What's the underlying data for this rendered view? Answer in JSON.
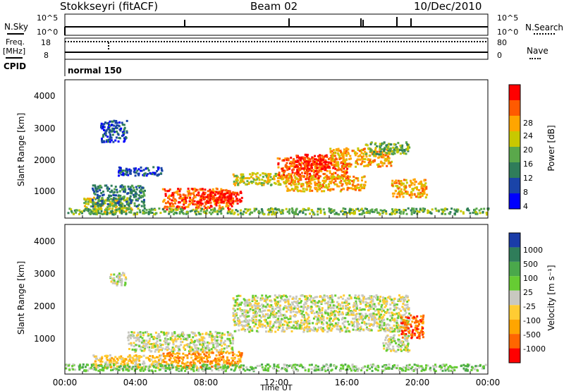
{
  "header": {
    "station": "Stokkseyri (fitACF)",
    "beam": "Beam 02",
    "date": "10/Dec/2010"
  },
  "top_panels": {
    "nsky_label": "N.Sky",
    "nsky_ticks": [
      "10^5",
      "10^0"
    ],
    "nsearch_label": "N.Search",
    "nsearch_ticks": [
      "10^5",
      "10^0"
    ],
    "freq_label_1": "Freq.",
    "freq_label_2": "[MHz]",
    "freq_ticks": [
      "18",
      "8"
    ],
    "nave_label": "Nave",
    "nave_ticks": [
      "80",
      "0"
    ],
    "cpid_label": "CPID",
    "cpid_value": "normal 150"
  },
  "chart_data": [
    {
      "type": "heatmap",
      "panel": "power",
      "ylabel": "Slant Range [km]",
      "xlabel": "",
      "y_ticks": [
        "4000",
        "3000",
        "2000",
        "1000"
      ],
      "colorbar_label": "Power [dB]",
      "colorbar_ticks": [
        "28",
        "24",
        "20",
        "16",
        "12",
        "8",
        "4"
      ],
      "colors": [
        "#0000ff",
        "#1a44a8",
        "#2f7d5a",
        "#5aa84b",
        "#c8c800",
        "#ffa500",
        "#ff5a00",
        "#ff0000"
      ],
      "blobs": [
        {
          "t0": 2.0,
          "t1": 3.5,
          "r0": 2500,
          "r1": 3200,
          "level": 1
        },
        {
          "t0": 1.0,
          "t1": 3.8,
          "r0": 200,
          "r1": 700,
          "level": 4
        },
        {
          "t0": 1.5,
          "t1": 4.5,
          "r0": 400,
          "r1": 1100,
          "level": 2
        },
        {
          "t0": 3.0,
          "t1": 5.5,
          "r0": 1400,
          "r1": 1700,
          "level": 1
        },
        {
          "t0": 5.5,
          "t1": 9.5,
          "r0": 300,
          "r1": 1000,
          "level": 6
        },
        {
          "t0": 7.5,
          "t1": 10.0,
          "r0": 500,
          "r1": 900,
          "level": 7
        },
        {
          "t0": 9.5,
          "t1": 12.5,
          "r0": 1100,
          "r1": 1500,
          "level": 4
        },
        {
          "t0": 12.0,
          "t1": 16.0,
          "r0": 1300,
          "r1": 2000,
          "level": 6
        },
        {
          "t0": 13.0,
          "t1": 15.0,
          "r0": 1600,
          "r1": 2100,
          "level": 7
        },
        {
          "t0": 15.0,
          "t1": 18.5,
          "r0": 1700,
          "r1": 2300,
          "level": 5
        },
        {
          "t0": 12.5,
          "t1": 17.0,
          "r0": 900,
          "r1": 1400,
          "level": 5
        },
        {
          "t0": 17.0,
          "t1": 19.5,
          "r0": 2100,
          "r1": 2500,
          "level": 3
        },
        {
          "t0": 18.5,
          "t1": 20.5,
          "r0": 700,
          "r1": 1300,
          "level": 5
        },
        {
          "t0": 0.0,
          "t1": 24.0,
          "r0": 150,
          "r1": 350,
          "level": 3
        }
      ]
    },
    {
      "type": "heatmap",
      "panel": "velocity",
      "ylabel": "Slant Range [km]",
      "xlabel": "Time UT",
      "y_ticks": [
        "4000",
        "3000",
        "2000",
        "1000"
      ],
      "x_ticks": [
        "00:00",
        "04:00",
        "08:00",
        "12:00",
        "16:00",
        "20:00",
        "00:00"
      ],
      "colorbar_label": "Velocity [m s⁻¹]",
      "colorbar_ticks": [
        "1000",
        "500",
        "100",
        "25",
        "-25",
        "-100",
        "-500",
        "-1000"
      ],
      "colors": [
        "#1a3ca8",
        "#2f7d5a",
        "#4aa84b",
        "#66cc33",
        "#c8c8c0",
        "#ffcc33",
        "#ffa500",
        "#ff6600",
        "#ff0000"
      ],
      "blobs": [
        {
          "t0": 2.5,
          "t1": 3.5,
          "r0": 2700,
          "r1": 3100,
          "level": 4
        },
        {
          "t0": 3.5,
          "t1": 9.5,
          "r0": 700,
          "r1": 1300,
          "level": 4
        },
        {
          "t0": 9.5,
          "t1": 19.5,
          "r0": 1300,
          "r1": 2400,
          "level": 4
        },
        {
          "t0": 1.5,
          "t1": 5.5,
          "r0": 200,
          "r1": 600,
          "level": 5
        },
        {
          "t0": 5.5,
          "t1": 10.0,
          "r0": 200,
          "r1": 700,
          "level": 6
        },
        {
          "t0": 0.0,
          "t1": 24.0,
          "r0": 120,
          "r1": 320,
          "level": 3
        },
        {
          "t0": 19.0,
          "t1": 20.3,
          "r0": 1100,
          "r1": 1800,
          "level": 7
        },
        {
          "t0": 18.0,
          "t1": 19.5,
          "r0": 700,
          "r1": 1200,
          "level": 4
        }
      ]
    }
  ]
}
